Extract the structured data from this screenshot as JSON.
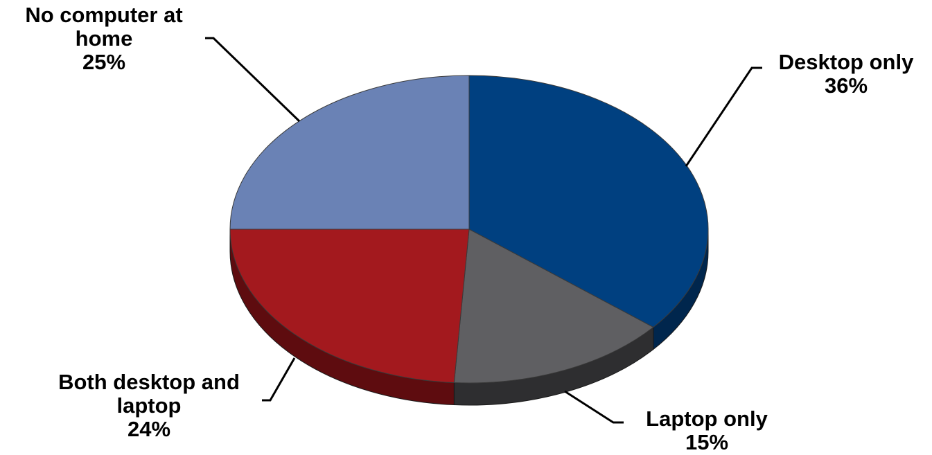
{
  "chart_data": {
    "type": "pie",
    "title": "",
    "style": "3d",
    "slices": [
      {
        "label_lines": [
          "Desktop only"
        ],
        "value": 36,
        "pct_label": "36%",
        "color": "#004080",
        "side_color": "#00264d"
      },
      {
        "label_lines": [
          "Laptop only"
        ],
        "value": 15,
        "pct_label": "15%",
        "color": "#5f5f62",
        "side_color": "#2e2e30"
      },
      {
        "label_lines": [
          "Both desktop and",
          "laptop"
        ],
        "value": 24,
        "pct_label": "24%",
        "color": "#a3191e",
        "side_color": "#5e0c0f"
      },
      {
        "label_lines": [
          "No computer at",
          "home"
        ],
        "value": 25,
        "pct_label": "25%",
        "color": "#6a82b5",
        "side_color": "#42557e"
      }
    ],
    "start_angle_deg": -90,
    "direction": "clockwise",
    "leader_lines": true,
    "legend": "none"
  }
}
